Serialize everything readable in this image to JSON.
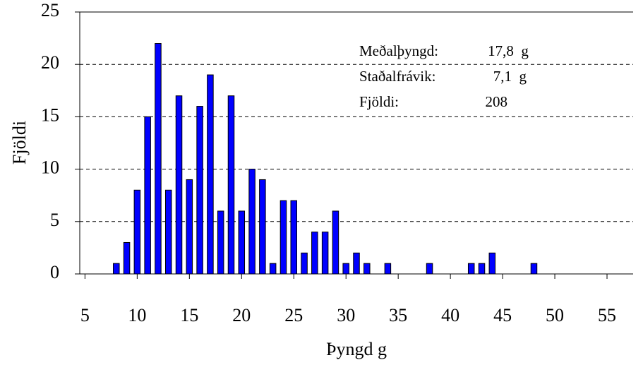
{
  "chart_data": {
    "type": "bar",
    "x_label": "Þyngd g",
    "y_label": "Fjöldi",
    "x": [
      8,
      9,
      10,
      11,
      12,
      13,
      14,
      15,
      16,
      17,
      18,
      19,
      20,
      21,
      22,
      23,
      24,
      25,
      26,
      27,
      28,
      29,
      30,
      31,
      32,
      34,
      38,
      42,
      43,
      44,
      48
    ],
    "values": [
      1,
      3,
      8,
      15,
      22,
      8,
      17,
      9,
      16,
      19,
      6,
      17,
      6,
      10,
      9,
      1,
      7,
      7,
      2,
      4,
      4,
      6,
      1,
      2,
      1,
      1,
      1,
      1,
      1,
      2,
      1
    ],
    "color": "#0000ff",
    "xlim": [
      4.5,
      57.5
    ],
    "xticks": [
      5,
      10,
      15,
      20,
      25,
      30,
      35,
      40,
      45,
      50,
      55
    ],
    "ylim": [
      0,
      25
    ],
    "yticks": [
      0,
      5,
      10,
      15,
      20,
      25
    ],
    "grid": true,
    "annotations": [
      [
        "Meðalþyngd:",
        "17,8  g"
      ],
      [
        "Staðalfrávik:",
        "7,1  g"
      ],
      [
        "Fjöldi:",
        "208"
      ]
    ]
  }
}
